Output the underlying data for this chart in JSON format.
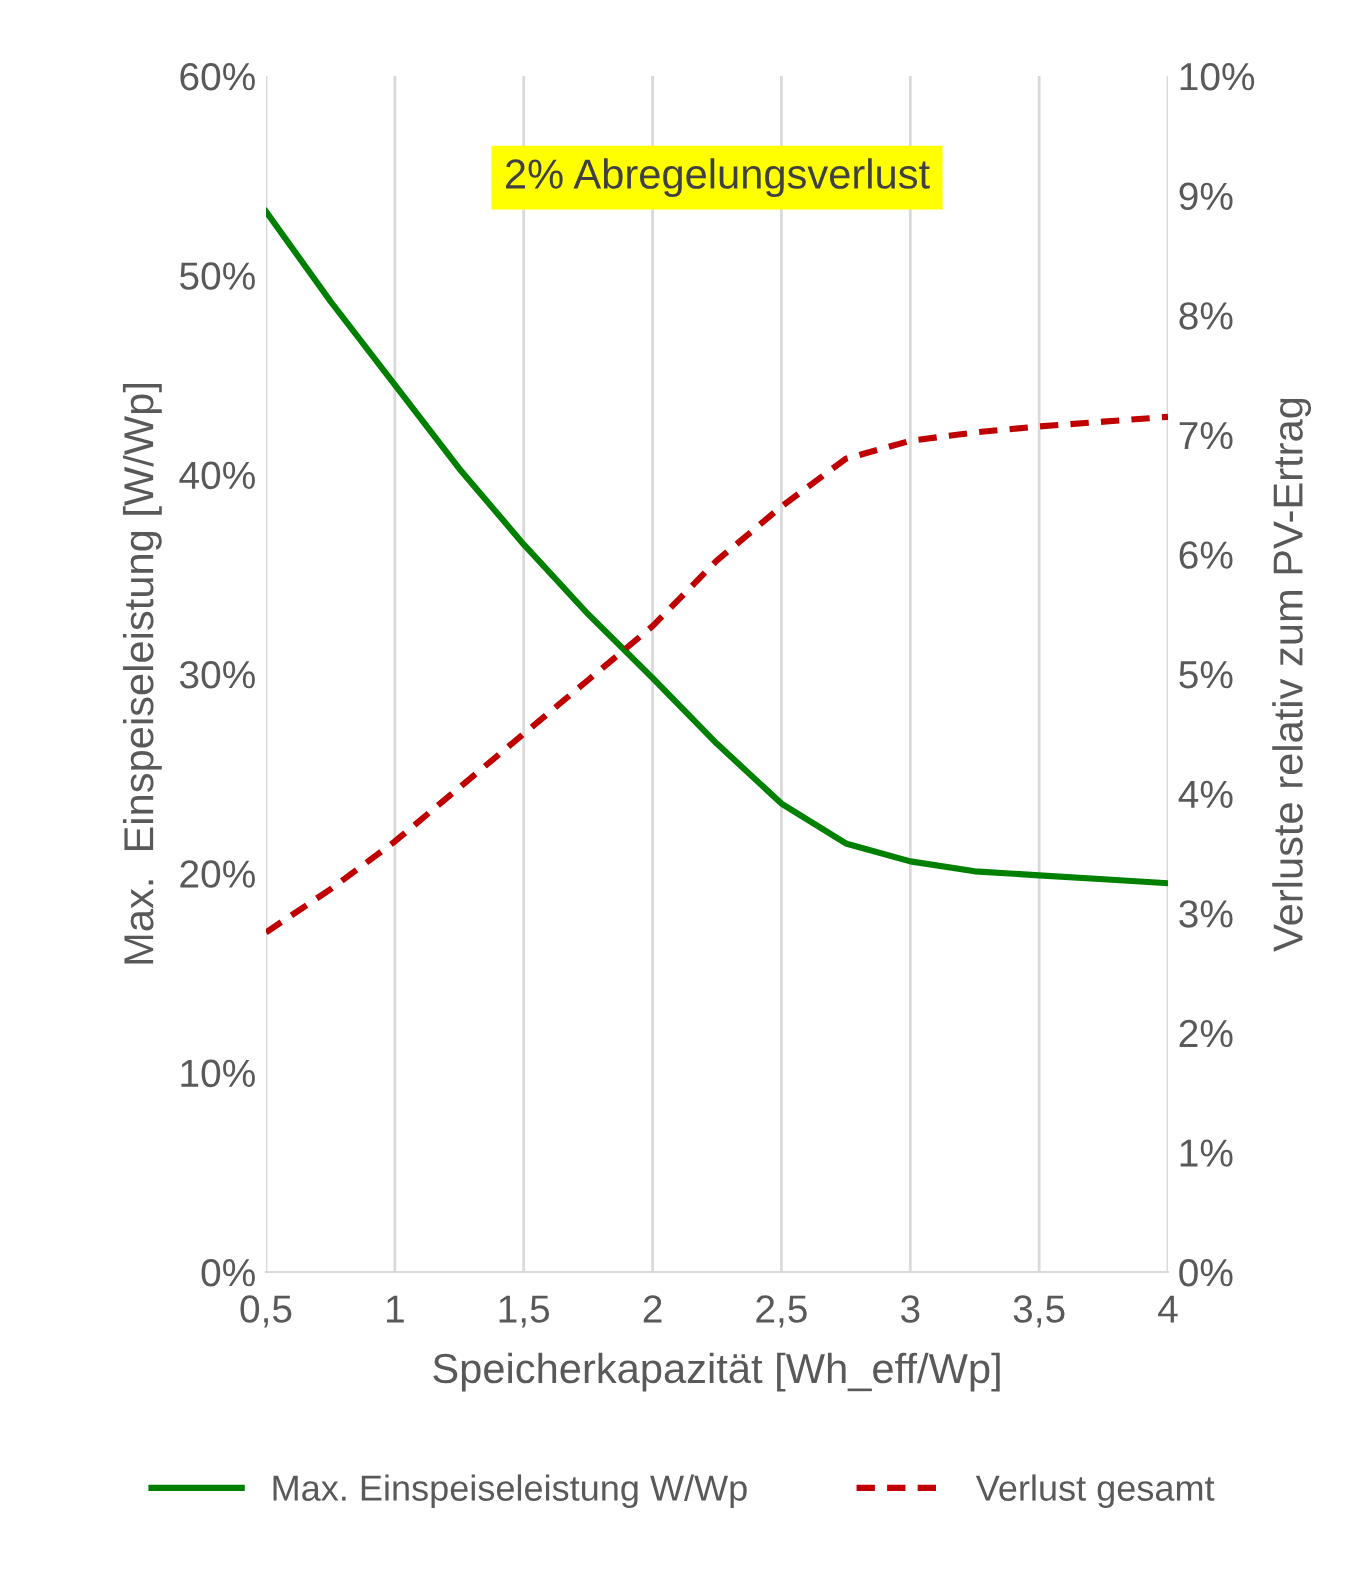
{
  "chart_data": {
    "type": "line",
    "xlabel": "Speicherkapazität [Wh_eff/Wp]",
    "ylabel": "Max.  Einspeiseleistung [W/Wp]",
    "y2label": "Verluste relativ zum PV-Ertrag",
    "x": [
      0.5,
      0.75,
      1,
      1.25,
      1.5,
      1.75,
      2,
      2.25,
      2.5,
      2.75,
      3,
      3.25,
      3.5,
      3.75,
      4
    ],
    "series": [
      {
        "name": "Max. Einspeiseleistung W/Wp",
        "color": "#008000",
        "line_style": "solid",
        "values": [
          53.2,
          48.7,
          44.5,
          40.3,
          36.5,
          33,
          29.8,
          26.5,
          23.5,
          21.5,
          20.6,
          20.1,
          19.9,
          19.7,
          19.5
        ]
      },
      {
        "name": "Verlust gesamt",
        "color": "#c00000",
        "line_style": "dashed",
        "axis": "y2",
        "values": [
          2.84,
          3.2,
          3.6,
          4.05,
          4.5,
          4.95,
          5.4,
          5.95,
          6.4,
          6.8,
          6.95,
          7.02,
          7.07,
          7.11,
          7.15
        ]
      }
    ],
    "xlim": [
      0.5,
      4
    ],
    "xticks": [
      {
        "value": 0.5,
        "label": "0,5"
      },
      1,
      {
        "value": 1.5,
        "label": "1,5"
      },
      2,
      {
        "value": 2.5,
        "label": "2,5"
      },
      3,
      {
        "value": 3.5,
        "label": "3,5"
      },
      4
    ],
    "ylim": [
      0,
      60
    ],
    "yticks": [
      {
        "value": 0,
        "label": "0%"
      },
      {
        "value": 10,
        "label": "10%"
      },
      {
        "value": 20,
        "label": "20%"
      },
      {
        "value": 30,
        "label": "30%"
      },
      {
        "value": 40,
        "label": "40%"
      },
      {
        "value": 50,
        "label": "50%"
      },
      {
        "value": 60,
        "label": "60%"
      }
    ],
    "y2lim": [
      0,
      10
    ],
    "y2ticks": [
      {
        "value": 0,
        "label": "0%"
      },
      {
        "value": 1,
        "label": "1%"
      },
      {
        "value": 2,
        "label": "2%"
      },
      {
        "value": 3,
        "label": "3%"
      },
      {
        "value": 4,
        "label": "4%"
      },
      {
        "value": 5,
        "label": "5%"
      },
      {
        "value": 6,
        "label": "6%"
      },
      {
        "value": 7,
        "label": "7%"
      },
      {
        "value": 8,
        "label": "8%"
      },
      {
        "value": 9,
        "label": "9%"
      },
      {
        "value": 10,
        "label": "10%"
      }
    ],
    "annotations": [
      "2% Abregelungsverlust"
    ],
    "grid": "x",
    "legend": "bottom"
  }
}
